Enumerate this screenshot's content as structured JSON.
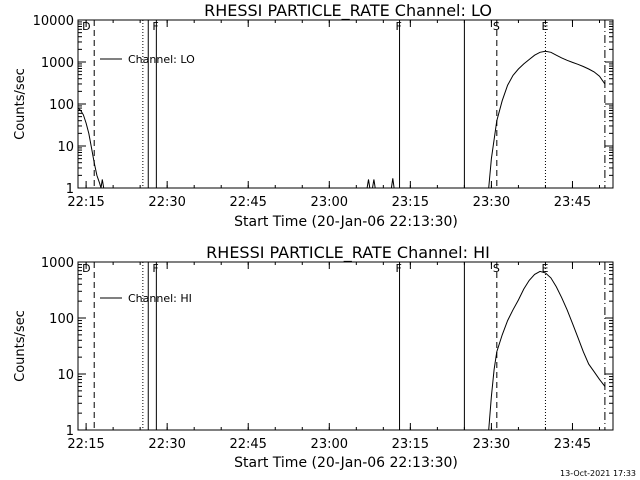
{
  "chart_data": [
    {
      "type": "line",
      "title": "RHESSI PARTICLE_RATE Channel: LO",
      "xlabel": "Start Time (20-Jan-06 22:13:30)",
      "ylabel": "Counts/sec",
      "yscale": "log",
      "ylim": [
        1,
        10000
      ],
      "y_ticks": [
        "1",
        "10",
        "100",
        "1000",
        "10000"
      ],
      "x_ticks": [
        "22:15",
        "22:30",
        "22:45",
        "23:00",
        "23:15",
        "23:30",
        "23:45"
      ],
      "legend": {
        "label": "Channel: LO",
        "placement": "top-left"
      },
      "markers": [
        {
          "label": "D",
          "time": "22:15:00",
          "style": "solid"
        },
        {
          "label": "F",
          "time": "22:28:00",
          "style": "solid"
        },
        {
          "label": "F",
          "time": "23:13:00",
          "style": "solid"
        },
        {
          "label": "S",
          "time": "23:31:00",
          "style": "dashed"
        },
        {
          "label": "E",
          "time": "23:40:00",
          "style": "dotted"
        }
      ],
      "vlines": [
        {
          "time": "22:16:30",
          "style": "dashed"
        },
        {
          "time": "22:25:30",
          "style": "dotted"
        },
        {
          "time": "22:26:30",
          "style": "solid"
        },
        {
          "time": "22:28:00",
          "style": "solid"
        },
        {
          "time": "23:13:00",
          "style": "solid"
        },
        {
          "time": "23:25:00",
          "style": "solid"
        },
        {
          "time": "23:31:00",
          "style": "dashed"
        },
        {
          "time": "23:40:00",
          "style": "dotted"
        },
        {
          "time": "23:51:00",
          "style": "dashdot"
        }
      ],
      "series": [
        {
          "segments": [
            {
              "x": [
                "22:13:30",
                "22:14:00",
                "22:14:30",
                "22:15:00",
                "22:15:30",
                "22:16:00",
                "22:16:30",
                "22:17:00",
                "22:17:30",
                "22:17:45",
                "22:18:00",
                "22:18:15",
                "22:18:30"
              ],
              "y": [
                80,
                70,
                55,
                35,
                20,
                9,
                4,
                2,
                1.3,
                1,
                1.6,
                1,
                1
              ]
            },
            {
              "x": [
                "23:07:00",
                "23:07:15",
                "23:07:30"
              ],
              "y": [
                1,
                1.6,
                1
              ]
            },
            {
              "x": [
                "23:08:00",
                "23:08:15",
                "23:08:30"
              ],
              "y": [
                1,
                1.6,
                1
              ]
            },
            {
              "x": [
                "23:11:30",
                "23:11:45",
                "23:12:00"
              ],
              "y": [
                1,
                1.7,
                1
              ]
            },
            {
              "x": [
                "23:29:30",
                "23:30:00",
                "23:31:00",
                "23:32:00",
                "23:33:00",
                "23:34:00",
                "23:35:00",
                "23:36:00",
                "23:37:00",
                "23:38:00",
                "23:39:00",
                "23:40:00",
                "23:41:00",
                "23:42:00",
                "23:43:00",
                "23:44:00",
                "23:45:00",
                "23:46:00",
                "23:47:00",
                "23:48:00",
                "23:49:00",
                "23:50:00",
                "23:51:00"
              ],
              "y": [
                1,
                5,
                40,
                120,
                280,
                480,
                680,
                900,
                1150,
                1450,
                1700,
                1800,
                1700,
                1450,
                1250,
                1100,
                980,
                880,
                780,
                680,
                580,
                460,
                300
              ]
            }
          ]
        }
      ]
    },
    {
      "type": "line",
      "title": "RHESSI PARTICLE_RATE Channel: HI",
      "xlabel": "Start Time (20-Jan-06 22:13:30)",
      "ylabel": "Counts/sec",
      "yscale": "log",
      "ylim": [
        1,
        1000
      ],
      "y_ticks": [
        "1",
        "10",
        "100",
        "1000"
      ],
      "x_ticks": [
        "22:15",
        "22:30",
        "22:45",
        "23:00",
        "23:15",
        "23:30",
        "23:45"
      ],
      "legend": {
        "label": "Channel: HI",
        "placement": "top-left"
      },
      "markers": [
        {
          "label": "D",
          "time": "22:15:00",
          "style": "solid"
        },
        {
          "label": "F",
          "time": "22:28:00",
          "style": "solid"
        },
        {
          "label": "F",
          "time": "23:13:00",
          "style": "solid"
        },
        {
          "label": "S",
          "time": "23:31:00",
          "style": "dashed"
        },
        {
          "label": "E",
          "time": "23:40:00",
          "style": "dotted"
        }
      ],
      "vlines": [
        {
          "time": "22:16:30",
          "style": "dashed"
        },
        {
          "time": "22:25:30",
          "style": "dotted"
        },
        {
          "time": "22:26:30",
          "style": "solid"
        },
        {
          "time": "22:28:00",
          "style": "solid"
        },
        {
          "time": "23:13:00",
          "style": "solid"
        },
        {
          "time": "23:25:00",
          "style": "solid"
        },
        {
          "time": "23:31:00",
          "style": "dashed"
        },
        {
          "time": "23:40:00",
          "style": "dotted"
        },
        {
          "time": "23:51:00",
          "style": "dashdot"
        }
      ],
      "series": [
        {
          "segments": [
            {
              "x": [
                "23:29:30",
                "23:30:00",
                "23:30:30",
                "23:31:00",
                "23:32:00",
                "23:33:00",
                "23:34:00",
                "23:35:00",
                "23:36:00",
                "23:37:00",
                "23:38:00",
                "23:39:00",
                "23:40:00",
                "23:41:00",
                "23:42:00",
                "23:43:00",
                "23:44:00",
                "23:45:00",
                "23:46:00",
                "23:47:00",
                "23:48:00",
                "23:49:00",
                "23:50:00",
                "23:51:00"
              ],
              "y": [
                1,
                4,
                12,
                25,
                50,
                90,
                140,
                210,
                330,
                470,
                600,
                680,
                640,
                520,
                360,
                230,
                140,
                80,
                45,
                25,
                15,
                11,
                8,
                6
              ]
            }
          ]
        }
      ]
    }
  ],
  "footer": {
    "timestamp": "13-Oct-2021 17:33"
  }
}
